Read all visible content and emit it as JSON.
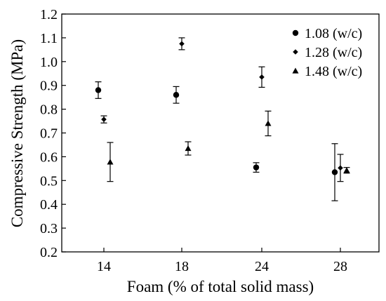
{
  "chart_data": {
    "type": "scatter",
    "xlabel": "Foam (% of total solid mass)",
    "ylabel": "Compressive Strength (MPa)",
    "categories": [
      "14",
      "18",
      "24",
      "28"
    ],
    "ylim": [
      0.2,
      1.2
    ],
    "yticks": [
      "0.2",
      "0.3",
      "0.4",
      "0.5",
      "0.6",
      "0.7",
      "0.8",
      "0.9",
      "1.0",
      "1.1",
      "1.2"
    ],
    "grid": false,
    "legend_position": "top-right",
    "series": [
      {
        "name": "1.08 (w/c)",
        "marker": "circle",
        "values": [
          0.88,
          0.86,
          0.555,
          0.535
        ],
        "errors": [
          0.035,
          0.035,
          0.02,
          0.12
        ]
      },
      {
        "name": "1.28 (w/c)",
        "marker": "diamond",
        "values": [
          0.757,
          1.075,
          0.935,
          0.553
        ],
        "errors": [
          0.015,
          0.025,
          0.043,
          0.057
        ]
      },
      {
        "name": "1.48 (w/c)",
        "marker": "triangle",
        "values": [
          0.578,
          0.635,
          0.74,
          0.543
        ],
        "errors": [
          0.082,
          0.028,
          0.052,
          0.012
        ]
      }
    ]
  }
}
